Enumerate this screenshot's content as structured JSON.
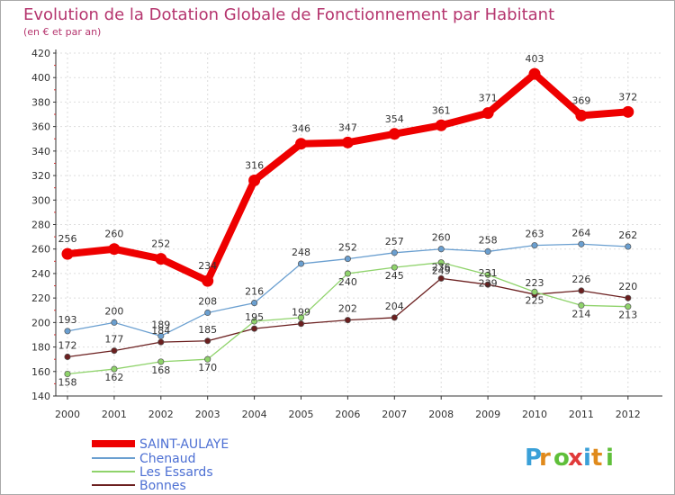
{
  "chart_data": {
    "type": "line",
    "title": "Evolution de la Dotation Globale de Fonctionnement par Habitant",
    "subtitle": "(en € et par an)",
    "x": [
      "2000",
      "2001",
      "2002",
      "2003",
      "2004",
      "2005",
      "2006",
      "2007",
      "2008",
      "2009",
      "2010",
      "2011",
      "2012"
    ],
    "ylim": [
      140,
      420
    ],
    "yticks": [
      140,
      160,
      180,
      200,
      220,
      240,
      260,
      280,
      300,
      320,
      340,
      360,
      380,
      400,
      420
    ],
    "series": [
      {
        "name": "SAINT-AULAYE",
        "color": "#ee0000",
        "values": [
          256,
          260,
          252,
          234,
          316,
          346,
          347,
          354,
          361,
          371,
          403,
          369,
          372
        ]
      },
      {
        "name": "Chenaud",
        "color": "#6a9fd0",
        "values": [
          193,
          200,
          189,
          208,
          216,
          248,
          252,
          257,
          260,
          258,
          263,
          264,
          262
        ]
      },
      {
        "name": "Les Essards",
        "color": "#8fd36b",
        "values": [
          158,
          162,
          168,
          170,
          201,
          204,
          240,
          245,
          249,
          239,
          225,
          214,
          213
        ]
      },
      {
        "name": "Bonnes",
        "color": "#6b1f1f",
        "values": [
          172,
          177,
          184,
          185,
          195,
          199,
          202,
          204,
          236,
          231,
          223,
          226,
          220
        ]
      }
    ],
    "series_value_labels": {
      "Chenaud": [
        "193",
        "200",
        "189",
        "208",
        "216",
        "248",
        "252",
        "257",
        "260",
        "258",
        "263",
        "264",
        "262"
      ],
      "Les Essards": [
        "158",
        "162",
        "168",
        "170",
        "",
        "",
        "240",
        "245",
        "249",
        "239",
        "225",
        "214",
        "213"
      ],
      "Bonnes": [
        "172",
        "177",
        "184",
        "185",
        "195",
        "199",
        "202",
        "204",
        "236",
        "231",
        "223",
        "226",
        "220"
      ]
    },
    "legend_position": "bottom-left"
  },
  "logo": {
    "text": "Proxiti",
    "colors": [
      "#3aa0d8",
      "#e08a1c",
      "#5fbf3a",
      "#e03a3a",
      "#3aa0d8",
      "#e08a1c",
      "#5fbf3a"
    ]
  }
}
